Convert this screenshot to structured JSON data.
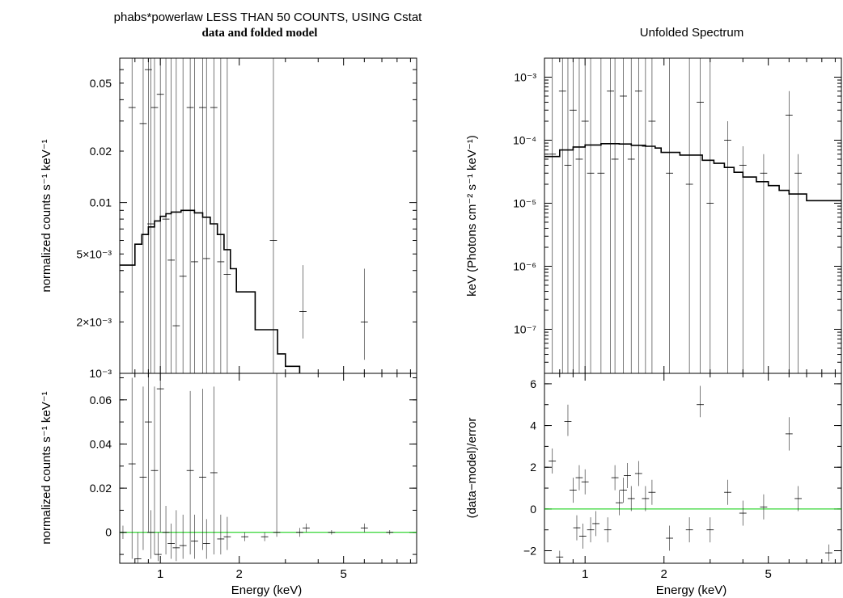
{
  "left_title": "phabs*powerlaw LESS THAN 50 COUNTS, USING Cstat",
  "left_subtitle": "data and folded model",
  "right_title": "Unfolded Spectrum",
  "colors": {
    "data": "#000000",
    "model": "#000000",
    "zero_line": "#00cc00"
  },
  "chart_data": [
    {
      "id": "counts",
      "type": "scatter",
      "xlabel": "Energy (keV)",
      "ylabel": "normalized counts s⁻¹ keV⁻¹",
      "xscale": "log",
      "yscale": "log",
      "xlim": [
        0.7,
        9.5
      ],
      "ylim": [
        0.001,
        0.07
      ],
      "x_ticks": [
        "1",
        "2",
        "5"
      ],
      "y_ticks": [
        "0.05",
        "0.02",
        "0.01",
        "5×10⁻³",
        "2×10⁻³",
        "10⁻³"
      ],
      "points": [
        {
          "x": 0.7,
          "y": 0.004,
          "ylo": 0.001,
          "yhi": 0.07
        },
        {
          "x": 0.78,
          "y": 0.036,
          "ylo": 0.001,
          "yhi": 0.07
        },
        {
          "x": 0.86,
          "y": 0.029,
          "ylo": 0.001,
          "yhi": 0.07
        },
        {
          "x": 0.9,
          "y": 0.06,
          "ylo": 0.001,
          "yhi": 0.07
        },
        {
          "x": 0.92,
          "y": 0.0075,
          "ylo": 0.001,
          "yhi": 0.07
        },
        {
          "x": 0.95,
          "y": 0.036,
          "ylo": 0.001,
          "yhi": 0.07
        },
        {
          "x": 1.0,
          "y": 0.043,
          "ylo": 0.001,
          "yhi": 0.07
        },
        {
          "x": 1.05,
          "y": 0.008,
          "ylo": 0.001,
          "yhi": 0.07
        },
        {
          "x": 1.1,
          "y": 0.0046,
          "ylo": 0.001,
          "yhi": 0.07
        },
        {
          "x": 1.15,
          "y": 0.0019,
          "ylo": 0.001,
          "yhi": 0.07
        },
        {
          "x": 1.22,
          "y": 0.0037,
          "ylo": 0.001,
          "yhi": 0.07
        },
        {
          "x": 1.3,
          "y": 0.036,
          "ylo": 0.001,
          "yhi": 0.07
        },
        {
          "x": 1.35,
          "y": 0.0045,
          "ylo": 0.001,
          "yhi": 0.07
        },
        {
          "x": 1.45,
          "y": 0.036,
          "ylo": 0.001,
          "yhi": 0.07
        },
        {
          "x": 1.5,
          "y": 0.0047,
          "ylo": 0.001,
          "yhi": 0.07
        },
        {
          "x": 1.6,
          "y": 0.036,
          "ylo": 0.001,
          "yhi": 0.07
        },
        {
          "x": 1.7,
          "y": 0.0045,
          "ylo": 0.001,
          "yhi": 0.07
        },
        {
          "x": 1.8,
          "y": 0.0038,
          "ylo": 0.001,
          "yhi": 0.07
        },
        {
          "x": 2.7,
          "y": 0.006,
          "ylo": 0.001,
          "yhi": 0.07
        },
        {
          "x": 3.5,
          "y": 0.0023,
          "ylo": 0.0016,
          "yhi": 0.0043
        },
        {
          "x": 6.0,
          "y": 0.002,
          "ylo": 0.0012,
          "yhi": 0.0041
        }
      ],
      "model": [
        [
          0.7,
          0.0043
        ],
        [
          0.8,
          0.0043
        ],
        [
          0.8,
          0.0057
        ],
        [
          0.85,
          0.0057
        ],
        [
          0.85,
          0.0065
        ],
        [
          0.9,
          0.0065
        ],
        [
          0.9,
          0.0072
        ],
        [
          0.95,
          0.0072
        ],
        [
          0.95,
          0.0078
        ],
        [
          1.0,
          0.0078
        ],
        [
          1.0,
          0.0083
        ],
        [
          1.05,
          0.0083
        ],
        [
          1.05,
          0.0086
        ],
        [
          1.1,
          0.0086
        ],
        [
          1.1,
          0.0088
        ],
        [
          1.2,
          0.0088
        ],
        [
          1.2,
          0.009
        ],
        [
          1.35,
          0.009
        ],
        [
          1.35,
          0.0087
        ],
        [
          1.45,
          0.0087
        ],
        [
          1.45,
          0.0082
        ],
        [
          1.55,
          0.0082
        ],
        [
          1.55,
          0.0075
        ],
        [
          1.65,
          0.0075
        ],
        [
          1.65,
          0.0065
        ],
        [
          1.75,
          0.0065
        ],
        [
          1.75,
          0.0053
        ],
        [
          1.85,
          0.0053
        ],
        [
          1.85,
          0.0041
        ],
        [
          1.95,
          0.0041
        ],
        [
          1.95,
          0.003
        ],
        [
          2.3,
          0.003
        ],
        [
          2.3,
          0.0018
        ],
        [
          2.8,
          0.0018
        ],
        [
          2.8,
          0.0013
        ],
        [
          3.0,
          0.0013
        ],
        [
          3.0,
          0.0011
        ],
        [
          3.4,
          0.0011
        ],
        [
          3.4,
          0.001
        ]
      ]
    },
    {
      "id": "counts-residual",
      "type": "scatter",
      "xlabel": "Energy (keV)",
      "ylabel": "normalized counts s⁻¹ keV⁻¹",
      "xscale": "log",
      "yscale": "linear",
      "xlim": [
        0.7,
        9.5
      ],
      "ylim": [
        -0.014,
        0.072
      ],
      "x_ticks": [
        "1",
        "2",
        "5"
      ],
      "y_ticks": [
        "0.06",
        "0.04",
        "0.02",
        "0"
      ],
      "points": [
        {
          "x": 0.72,
          "y": 0.0,
          "ylo": -0.003,
          "yhi": 0.003
        },
        {
          "x": 0.78,
          "y": 0.031,
          "ylo": -0.012,
          "yhi": 0.07
        },
        {
          "x": 0.82,
          "y": -0.012,
          "ylo": -0.014,
          "yhi": 0.0
        },
        {
          "x": 0.86,
          "y": 0.025,
          "ylo": -0.008,
          "yhi": 0.066
        },
        {
          "x": 0.9,
          "y": 0.05,
          "ylo": 0.0,
          "yhi": 0.072
        },
        {
          "x": 0.92,
          "y": 0.0,
          "ylo": -0.012,
          "yhi": 0.01
        },
        {
          "x": 0.95,
          "y": 0.028,
          "ylo": -0.01,
          "yhi": 0.066
        },
        {
          "x": 0.98,
          "y": -0.01,
          "ylo": -0.013,
          "yhi": 0.0
        },
        {
          "x": 1.0,
          "y": 0.065,
          "ylo": 0.0,
          "yhi": 0.072
        },
        {
          "x": 1.05,
          "y": 0.0,
          "ylo": -0.01,
          "yhi": 0.012
        },
        {
          "x": 1.1,
          "y": -0.005,
          "ylo": -0.012,
          "yhi": 0.004
        },
        {
          "x": 1.15,
          "y": -0.007,
          "ylo": -0.013,
          "yhi": 0.01
        },
        {
          "x": 1.22,
          "y": -0.006,
          "ylo": -0.012,
          "yhi": 0.008
        },
        {
          "x": 1.3,
          "y": 0.028,
          "ylo": -0.01,
          "yhi": 0.064
        },
        {
          "x": 1.35,
          "y": -0.004,
          "ylo": -0.012,
          "yhi": 0.008
        },
        {
          "x": 1.45,
          "y": 0.025,
          "ylo": -0.008,
          "yhi": 0.065
        },
        {
          "x": 1.5,
          "y": -0.005,
          "ylo": -0.012,
          "yhi": 0.006
        },
        {
          "x": 1.6,
          "y": 0.027,
          "ylo": -0.01,
          "yhi": 0.066
        },
        {
          "x": 1.7,
          "y": -0.003,
          "ylo": -0.01,
          "yhi": 0.008
        },
        {
          "x": 1.8,
          "y": -0.002,
          "ylo": -0.008,
          "yhi": 0.007
        },
        {
          "x": 2.1,
          "y": -0.002,
          "ylo": -0.004,
          "yhi": 0.0
        },
        {
          "x": 2.5,
          "y": -0.002,
          "ylo": -0.004,
          "yhi": 0.0
        },
        {
          "x": 2.78,
          "y": 0.0,
          "ylo": -0.002,
          "yhi": 0.072
        },
        {
          "x": 3.4,
          "y": 0.0,
          "ylo": -0.002,
          "yhi": 0.002
        },
        {
          "x": 3.6,
          "y": 0.002,
          "ylo": 0.0,
          "yhi": 0.004
        },
        {
          "x": 4.5,
          "y": 0.0,
          "ylo": -0.001,
          "yhi": 0.001
        },
        {
          "x": 6.0,
          "y": 0.002,
          "ylo": 0.0,
          "yhi": 0.004
        },
        {
          "x": 7.5,
          "y": 0.0,
          "ylo": -0.001,
          "yhi": 0.001
        }
      ]
    },
    {
      "id": "unfolded",
      "type": "scatter",
      "xlabel": "",
      "ylabel": "keV (Photons cm⁻² s⁻¹ keV⁻¹)",
      "xscale": "log",
      "yscale": "log",
      "xlim": [
        0.7,
        9.5
      ],
      "ylim": [
        2e-08,
        0.002
      ],
      "x_ticks": [
        "1",
        "2",
        "5"
      ],
      "y_ticks": [
        "10⁻³",
        "10⁻⁴",
        "10⁻⁵",
        "10⁻⁶",
        "10⁻⁷"
      ],
      "points": [
        {
          "x": 0.75,
          "y": 6e-05,
          "ylo": 2e-08,
          "yhi": 0.002
        },
        {
          "x": 0.82,
          "y": 0.0006,
          "ylo": 2e-08,
          "yhi": 0.002
        },
        {
          "x": 0.86,
          "y": 4e-05,
          "ylo": 2e-08,
          "yhi": 0.002
        },
        {
          "x": 0.9,
          "y": 0.0003,
          "ylo": 2e-08,
          "yhi": 0.002
        },
        {
          "x": 0.95,
          "y": 5e-05,
          "ylo": 2e-08,
          "yhi": 0.002
        },
        {
          "x": 1.0,
          "y": 0.0002,
          "ylo": 2e-08,
          "yhi": 0.002
        },
        {
          "x": 1.05,
          "y": 3e-05,
          "ylo": 2e-08,
          "yhi": 0.002
        },
        {
          "x": 1.15,
          "y": 3e-05,
          "ylo": 2e-08,
          "yhi": 0.002
        },
        {
          "x": 1.25,
          "y": 0.0006,
          "ylo": 2e-08,
          "yhi": 0.002
        },
        {
          "x": 1.3,
          "y": 5e-05,
          "ylo": 2e-08,
          "yhi": 0.002
        },
        {
          "x": 1.4,
          "y": 0.0005,
          "ylo": 2e-08,
          "yhi": 0.002
        },
        {
          "x": 1.5,
          "y": 5e-05,
          "ylo": 2e-08,
          "yhi": 0.002
        },
        {
          "x": 1.6,
          "y": 0.0006,
          "ylo": 2e-08,
          "yhi": 0.002
        },
        {
          "x": 1.7,
          "y": 8e-05,
          "ylo": 2e-08,
          "yhi": 0.002
        },
        {
          "x": 1.8,
          "y": 0.0002,
          "ylo": 2e-08,
          "yhi": 0.002
        },
        {
          "x": 2.1,
          "y": 3e-05,
          "ylo": 2e-08,
          "yhi": 0.002
        },
        {
          "x": 2.5,
          "y": 2e-05,
          "ylo": 2e-08,
          "yhi": 0.002
        },
        {
          "x": 2.75,
          "y": 0.0004,
          "ylo": 2e-08,
          "yhi": 0.002
        },
        {
          "x": 3.0,
          "y": 1e-05,
          "ylo": 2e-08,
          "yhi": 0.002
        },
        {
          "x": 3.5,
          "y": 0.0001,
          "ylo": 2e-08,
          "yhi": 0.0002
        },
        {
          "x": 4.0,
          "y": 4e-05,
          "ylo": 2e-08,
          "yhi": 8e-05
        },
        {
          "x": 4.8,
          "y": 3e-05,
          "ylo": 2e-08,
          "yhi": 6e-05
        },
        {
          "x": 6.0,
          "y": 0.00025,
          "ylo": 2e-08,
          "yhi": 0.0006
        },
        {
          "x": 6.5,
          "y": 3e-05,
          "ylo": 2e-08,
          "yhi": 6e-05
        }
      ],
      "model": [
        [
          0.7,
          5.5e-05
        ],
        [
          0.8,
          5.5e-05
        ],
        [
          0.8,
          7e-05
        ],
        [
          0.9,
          7e-05
        ],
        [
          0.9,
          7.8e-05
        ],
        [
          1.0,
          7.8e-05
        ],
        [
          1.0,
          8.4e-05
        ],
        [
          1.15,
          8.4e-05
        ],
        [
          1.15,
          8.8e-05
        ],
        [
          1.35,
          8.8e-05
        ],
        [
          1.35,
          8.7e-05
        ],
        [
          1.5,
          8.7e-05
        ],
        [
          1.5,
          8.3e-05
        ],
        [
          1.7,
          8.3e-05
        ],
        [
          1.7,
          8e-05
        ],
        [
          1.85,
          8e-05
        ],
        [
          1.85,
          7.5e-05
        ],
        [
          1.95,
          7.5e-05
        ],
        [
          1.95,
          6.4e-05
        ],
        [
          2.3,
          6.4e-05
        ],
        [
          2.3,
          5.8e-05
        ],
        [
          2.8,
          5.8e-05
        ],
        [
          2.8,
          4.8e-05
        ],
        [
          3.1,
          4.8e-05
        ],
        [
          3.1,
          4.3e-05
        ],
        [
          3.4,
          4.3e-05
        ],
        [
          3.4,
          3.7e-05
        ],
        [
          3.7,
          3.7e-05
        ],
        [
          3.7,
          3.1e-05
        ],
        [
          4.0,
          3.1e-05
        ],
        [
          4.0,
          2.6e-05
        ],
        [
          4.5,
          2.6e-05
        ],
        [
          4.5,
          2.2e-05
        ],
        [
          5.0,
          2.2e-05
        ],
        [
          5.0,
          1.9e-05
        ],
        [
          5.5,
          1.9e-05
        ],
        [
          5.5,
          1.6e-05
        ],
        [
          6.0,
          1.6e-05
        ],
        [
          6.0,
          1.4e-05
        ],
        [
          7.0,
          1.4e-05
        ],
        [
          7.0,
          1.1e-05
        ],
        [
          9.5,
          1.1e-05
        ]
      ]
    },
    {
      "id": "sigma-residual",
      "type": "scatter",
      "xlabel": "Energy (keV)",
      "ylabel": "(data−model)/error",
      "xscale": "log",
      "yscale": "linear",
      "xlim": [
        0.7,
        9.5
      ],
      "ylim": [
        -2.6,
        6.5
      ],
      "x_ticks": [
        "1",
        "2",
        "5"
      ],
      "y_ticks": [
        "6",
        "4",
        "2",
        "0",
        "−2"
      ],
      "points": [
        {
          "x": 0.75,
          "y": 2.3,
          "ylo": 1.7,
          "yhi": 2.9
        },
        {
          "x": 0.8,
          "y": -2.3,
          "ylo": -2.6,
          "yhi": -2.0
        },
        {
          "x": 0.86,
          "y": 4.2,
          "ylo": 3.5,
          "yhi": 5.0
        },
        {
          "x": 0.9,
          "y": 0.9,
          "ylo": 0.3,
          "yhi": 1.5
        },
        {
          "x": 0.93,
          "y": -0.9,
          "ylo": -1.5,
          "yhi": -0.3
        },
        {
          "x": 0.95,
          "y": 1.5,
          "ylo": 0.9,
          "yhi": 2.1
        },
        {
          "x": 0.98,
          "y": -1.3,
          "ylo": -1.9,
          "yhi": -0.7
        },
        {
          "x": 1.0,
          "y": 1.3,
          "ylo": 0.7,
          "yhi": 1.9
        },
        {
          "x": 1.05,
          "y": -1.0,
          "ylo": -1.6,
          "yhi": -0.4
        },
        {
          "x": 1.1,
          "y": -0.7,
          "ylo": -1.3,
          "yhi": -0.1
        },
        {
          "x": 1.22,
          "y": -1.0,
          "ylo": -1.6,
          "yhi": -0.4
        },
        {
          "x": 1.3,
          "y": 1.5,
          "ylo": 0.9,
          "yhi": 2.1
        },
        {
          "x": 1.35,
          "y": 0.3,
          "ylo": -0.3,
          "yhi": 0.9
        },
        {
          "x": 1.4,
          "y": 0.9,
          "ylo": 0.3,
          "yhi": 1.5
        },
        {
          "x": 1.45,
          "y": 1.6,
          "ylo": 1.0,
          "yhi": 2.2
        },
        {
          "x": 1.5,
          "y": 0.5,
          "ylo": -0.1,
          "yhi": 1.1
        },
        {
          "x": 1.6,
          "y": 1.7,
          "ylo": 1.1,
          "yhi": 2.3
        },
        {
          "x": 1.7,
          "y": 0.5,
          "ylo": -0.1,
          "yhi": 1.1
        },
        {
          "x": 1.8,
          "y": 0.8,
          "ylo": 0.2,
          "yhi": 1.4
        },
        {
          "x": 2.1,
          "y": -1.4,
          "ylo": -2.0,
          "yhi": -0.8
        },
        {
          "x": 2.5,
          "y": -1.0,
          "ylo": -1.6,
          "yhi": -0.4
        },
        {
          "x": 2.75,
          "y": 5.0,
          "ylo": 4.4,
          "yhi": 5.9
        },
        {
          "x": 3.0,
          "y": -1.0,
          "ylo": -1.6,
          "yhi": -0.4
        },
        {
          "x": 3.5,
          "y": 0.8,
          "ylo": 0.2,
          "yhi": 1.4
        },
        {
          "x": 4.0,
          "y": -0.2,
          "ylo": -0.8,
          "yhi": 0.4
        },
        {
          "x": 4.8,
          "y": 0.1,
          "ylo": -0.5,
          "yhi": 0.7
        },
        {
          "x": 6.0,
          "y": 3.6,
          "ylo": 2.8,
          "yhi": 4.4
        },
        {
          "x": 6.5,
          "y": 0.5,
          "ylo": -0.1,
          "yhi": 1.1
        },
        {
          "x": 8.5,
          "y": -2.1,
          "ylo": -2.5,
          "yhi": -1.7
        }
      ]
    }
  ]
}
